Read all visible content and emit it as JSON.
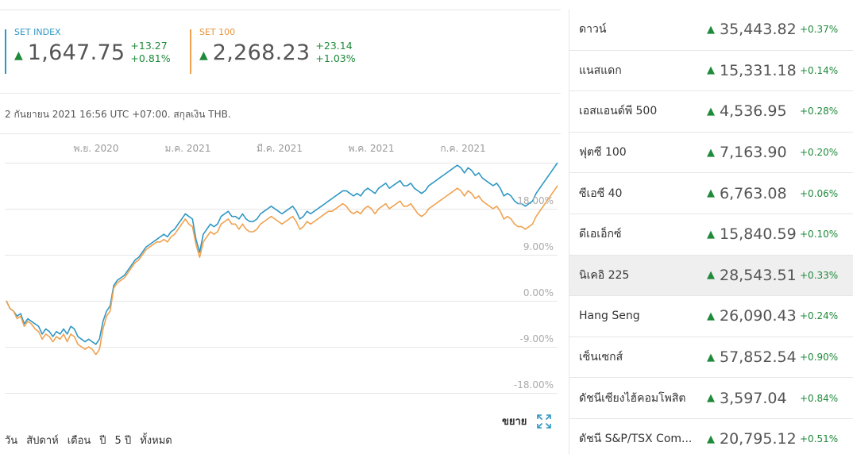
{
  "indices": [
    {
      "name": "SET INDEX",
      "value": "1,647.75",
      "change": "+13.27",
      "change_pct": "+0.81%",
      "color": "#2f97c4"
    },
    {
      "name": "SET 100",
      "value": "2,268.23",
      "change": "+23.14",
      "change_pct": "+1.03%",
      "color": "#f0a24f"
    }
  ],
  "timestamp": "2 กันยายน 2021 16:56 UTC +07:00. สกุลเงิน THB.",
  "chart_data": {
    "type": "line",
    "x_tick_labels": [
      "พ.ย. 2020",
      "ม.ค. 2021",
      "มี.ค. 2021",
      "พ.ค. 2021",
      "ก.ค. 2021"
    ],
    "y_tick_labels": [
      "18.00%",
      "9.00%",
      "0.00%",
      "-9.00%",
      "-18.00%"
    ],
    "y_ticks": [
      18,
      9,
      0,
      -9,
      -18
    ],
    "ylim": [
      -18,
      27
    ],
    "grid": true,
    "series": [
      {
        "name": "SET INDEX",
        "color": "#2f97c4",
        "values": [
          0,
          -1.5,
          -2,
          -3,
          -2.5,
          -4.5,
          -3.5,
          -4,
          -4.5,
          -5,
          -6.5,
          -5.5,
          -6,
          -7,
          -6,
          -6.5,
          -5.5,
          -6.5,
          -5,
          -5.5,
          -7,
          -7.5,
          -8,
          -7.5,
          -8,
          -8.5,
          -7.5,
          -4,
          -2,
          -1,
          3,
          4,
          4.5,
          5,
          6,
          7,
          8,
          8.5,
          9.5,
          10.5,
          11,
          11.5,
          12,
          12.5,
          13,
          12.5,
          13.5,
          14,
          15,
          16,
          17,
          16.5,
          16,
          12,
          9.5,
          13,
          14,
          15,
          14.5,
          15,
          16.5,
          17,
          17.5,
          16.5,
          16.5,
          16,
          17,
          16,
          15.5,
          15.5,
          16,
          17,
          17.5,
          18,
          18.5,
          18,
          17.5,
          17,
          17.5,
          18,
          18.5,
          17.5,
          16,
          16.5,
          17.5,
          17,
          17.5,
          18,
          18.5,
          19,
          19.5,
          20,
          20.5,
          21,
          21.5,
          21.5,
          21,
          20.5,
          21,
          20.5,
          21.5,
          22,
          21.5,
          21,
          22,
          22.5,
          23,
          22,
          22.5,
          23,
          23.5,
          22.5,
          22.5,
          23,
          22,
          21.5,
          21,
          21.5,
          22.5,
          23,
          23.5,
          24,
          24.5,
          25,
          25.5,
          26,
          26.5,
          26,
          25,
          26,
          25.5,
          24.5,
          25,
          24,
          23.5,
          23,
          22.5,
          23,
          22,
          20.5,
          21,
          20.5,
          19.5,
          19,
          19,
          18.5,
          19,
          19.5,
          21,
          22,
          23,
          24,
          25,
          26,
          27
        ]
      },
      {
        "name": "SET 100",
        "color": "#f0a24f",
        "values": [
          0,
          -1.5,
          -2,
          -3.5,
          -3,
          -5,
          -4,
          -4.5,
          -5.5,
          -6,
          -7.5,
          -6.5,
          -7,
          -8,
          -7,
          -7.5,
          -6.5,
          -8,
          -6.5,
          -7,
          -8.5,
          -9,
          -9.5,
          -9,
          -9.5,
          -10.5,
          -9.5,
          -5.5,
          -3,
          -2,
          2.5,
          3.5,
          4,
          4.5,
          5.5,
          6.5,
          7.5,
          8,
          9,
          10,
          10.5,
          11,
          11.5,
          11.5,
          12,
          11.5,
          12.5,
          13,
          14,
          15,
          16,
          15,
          14.5,
          11,
          8.5,
          11.5,
          12.5,
          13.5,
          13,
          13.5,
          15,
          15.5,
          16,
          15,
          15,
          14,
          15,
          14,
          13.5,
          13.5,
          14,
          15,
          15.5,
          16,
          16.5,
          16,
          15.5,
          15,
          15.5,
          16,
          16.5,
          15.5,
          14,
          14.5,
          15.5,
          15,
          15.5,
          16,
          16.5,
          17,
          17.5,
          17.5,
          18,
          18.5,
          19,
          18.5,
          17.5,
          17,
          17.5,
          17,
          18,
          18.5,
          18,
          17,
          18,
          18.5,
          19,
          18,
          18.5,
          19,
          19.5,
          18.5,
          18.5,
          19,
          18,
          17,
          16.5,
          17,
          18,
          18.5,
          19,
          19.5,
          20,
          20.5,
          21,
          21.5,
          22,
          21.5,
          20.5,
          21.5,
          21,
          20,
          20.5,
          19.5,
          19,
          18.5,
          18,
          18.5,
          17.5,
          16,
          16.5,
          16,
          15,
          14.5,
          14.5,
          14,
          14.5,
          15,
          16.5,
          17.5,
          18.5,
          19.5,
          20.5,
          21.5,
          22.5
        ]
      }
    ]
  },
  "expand_label": "ขยาย",
  "ranges": [
    "วัน",
    "สัปดาห์",
    "เดือน",
    "ปี",
    "5 ปี",
    "ทั้งหมด"
  ],
  "markets": [
    {
      "name": "ดาวน์",
      "value": "35,443.82",
      "change_pct": "+0.37%"
    },
    {
      "name": "แนสแดก",
      "value": "15,331.18",
      "change_pct": "+0.14%"
    },
    {
      "name": "เอสแอนด์พี 500",
      "value": "4,536.95",
      "change_pct": "+0.28%"
    },
    {
      "name": "ฟุตซี 100",
      "value": "7,163.90",
      "change_pct": "+0.20%"
    },
    {
      "name": "ซีเอซี 40",
      "value": "6,763.08",
      "change_pct": "+0.06%"
    },
    {
      "name": "ดีเอเอ็กซ์",
      "value": "15,840.59",
      "change_pct": "+0.10%"
    },
    {
      "name": "นิเคอิ 225",
      "value": "28,543.51",
      "change_pct": "+0.33%"
    },
    {
      "name": "Hang Seng",
      "value": "26,090.43",
      "change_pct": "+0.24%"
    },
    {
      "name": "เซ็นเซกส์",
      "value": "57,852.54",
      "change_pct": "+0.90%"
    },
    {
      "name": "ดัชนีเซียงไฮ้คอมโพสิต",
      "value": "3,597.04",
      "change_pct": "+0.84%"
    },
    {
      "name": "ดัชนี S&P/TSX Com...",
      "value": "20,795.12",
      "change_pct": "+0.51%"
    }
  ],
  "active_market_index": 6,
  "up_color": "#1e8a3a"
}
